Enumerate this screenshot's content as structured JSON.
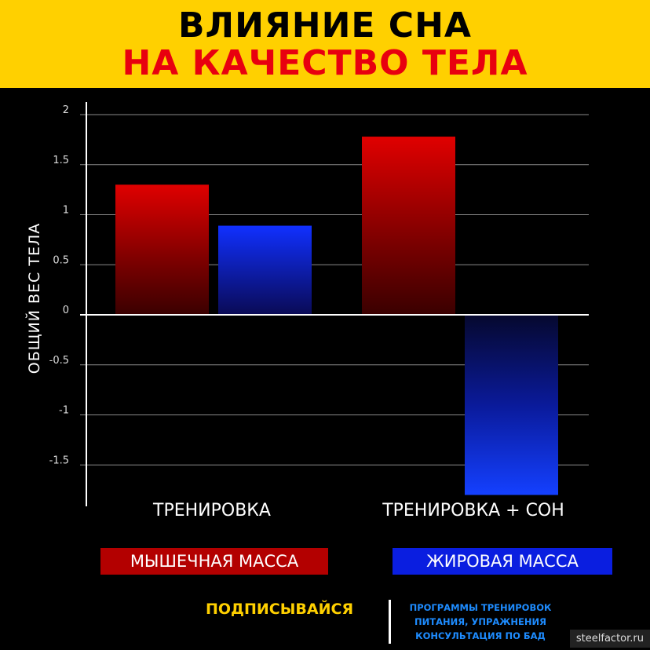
{
  "header": {
    "title_line1": "ВЛИЯНИЕ СНА",
    "title_line2": "НА КАЧЕСТВО ТЕЛА"
  },
  "chart_data": {
    "type": "bar",
    "categories": [
      "ТРЕНИРОВКА",
      "ТРЕНИРОВКА + СОН"
    ],
    "series": [
      {
        "name": "МЫШЕЧНАЯ МАССА",
        "values": [
          1.3,
          1.78
        ],
        "color": "#d40000"
      },
      {
        "name": "ЖИРОВАЯ МАССА",
        "values": [
          0.89,
          -1.8
        ],
        "color": "#0a28ff"
      }
    ],
    "ylabel": "ОБЩИЙ ВЕС ТЕЛА",
    "ylim": [
      -1.8,
      2
    ],
    "yticks": [
      2,
      1.5,
      1,
      0.5,
      0,
      -0.5,
      -1,
      -1.5
    ],
    "ytick_labels": [
      "2",
      "1.5",
      "1",
      "0.5",
      "0",
      "-0.5",
      "-1",
      "-1.5"
    ],
    "grid": true,
    "legend_position": "bottom"
  },
  "footer": {
    "subscribe": "ПОДПИСЫВАЙСЯ",
    "promo_lines": [
      "ПРОГРАММЫ ТРЕНИРОВОК",
      "ПИТАНИЯ, УПРАЖНЕНИЯ",
      "КОНСУЛЬТАЦИЯ ПО БАД"
    ],
    "site": "steelfactor.ru"
  }
}
